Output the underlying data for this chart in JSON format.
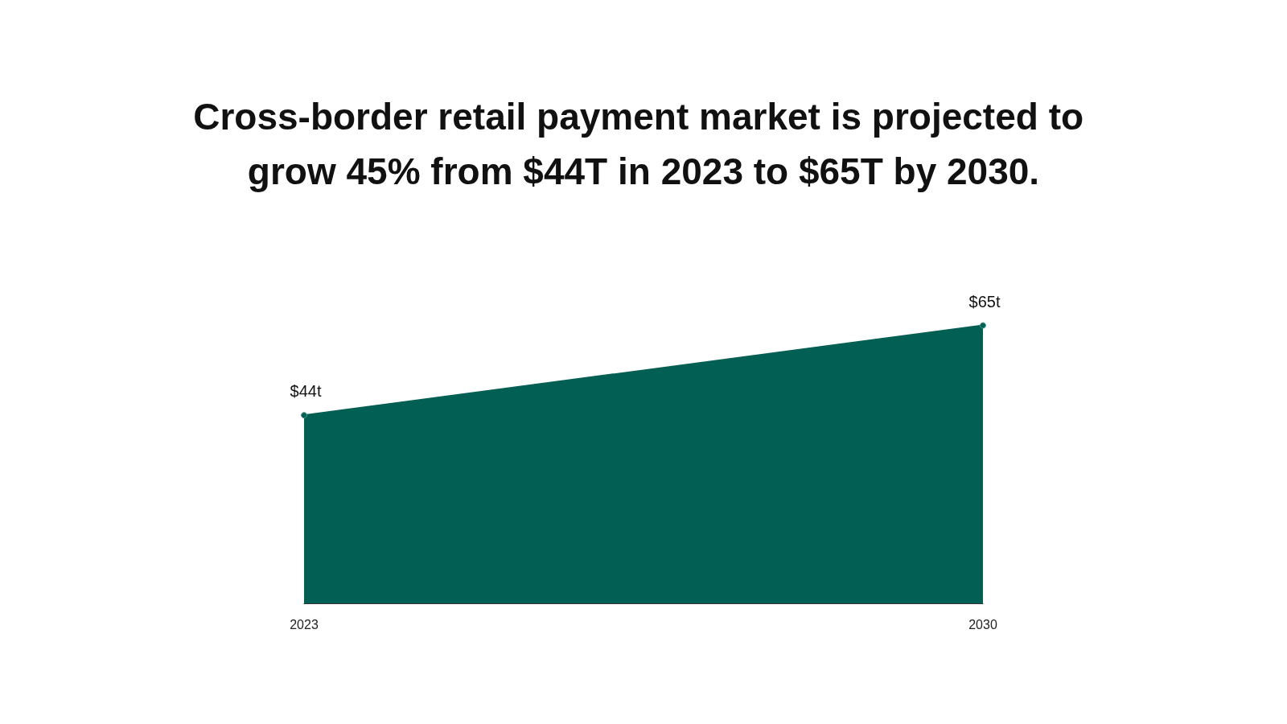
{
  "chart_data": {
    "type": "area",
    "title": "Cross-border retail payment market is projected to grow 45% from $44T in 2023 to $65T by 2030.",
    "categories": [
      "2023",
      "2030"
    ],
    "values": [
      44,
      65
    ],
    "value_labels": [
      "$44t",
      "$65t"
    ],
    "color": "#025f54",
    "marker": "circle"
  }
}
